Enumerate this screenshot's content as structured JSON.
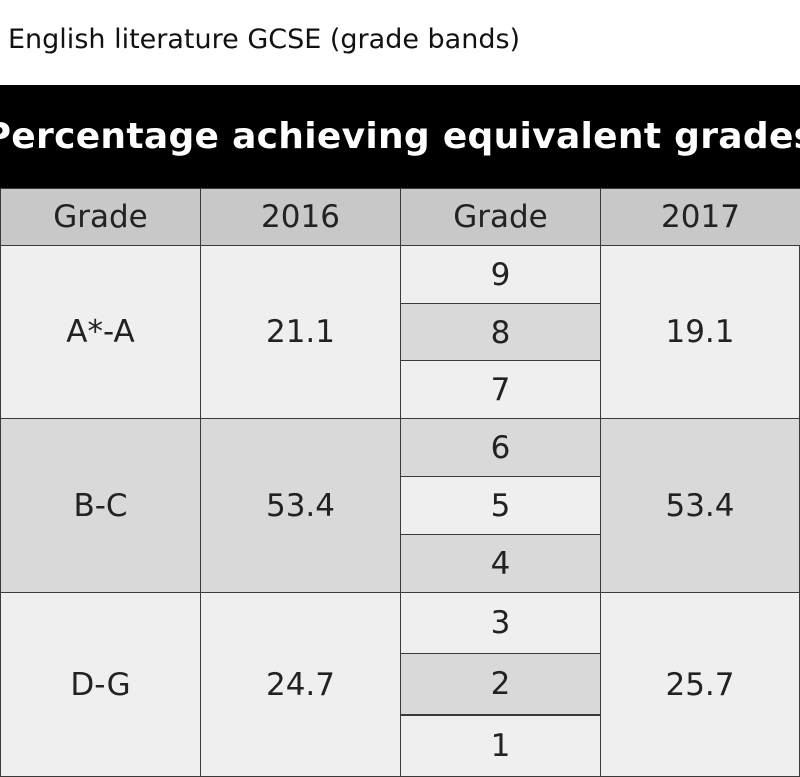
{
  "caption": "English literature GCSE (grade bands)",
  "table": {
    "title": "Percentage achieving equivalent grades",
    "header": [
      "Grade",
      "2016",
      "Grade",
      "2017"
    ],
    "rows": [
      {
        "grade_2016": "A*-A",
        "value_2016": 21.1,
        "grades_2017": [
          9,
          8,
          7
        ],
        "value_2017": 19.1
      },
      {
        "grade_2016": "B-C",
        "value_2016": 53.4,
        "grades_2017": [
          6,
          5,
          4
        ],
        "value_2017": 53.4
      },
      {
        "grade_2016": "D-G",
        "value_2016": 24.7,
        "grades_2017": [
          3,
          2,
          1
        ],
        "value_2017": 25.7
      }
    ]
  }
}
